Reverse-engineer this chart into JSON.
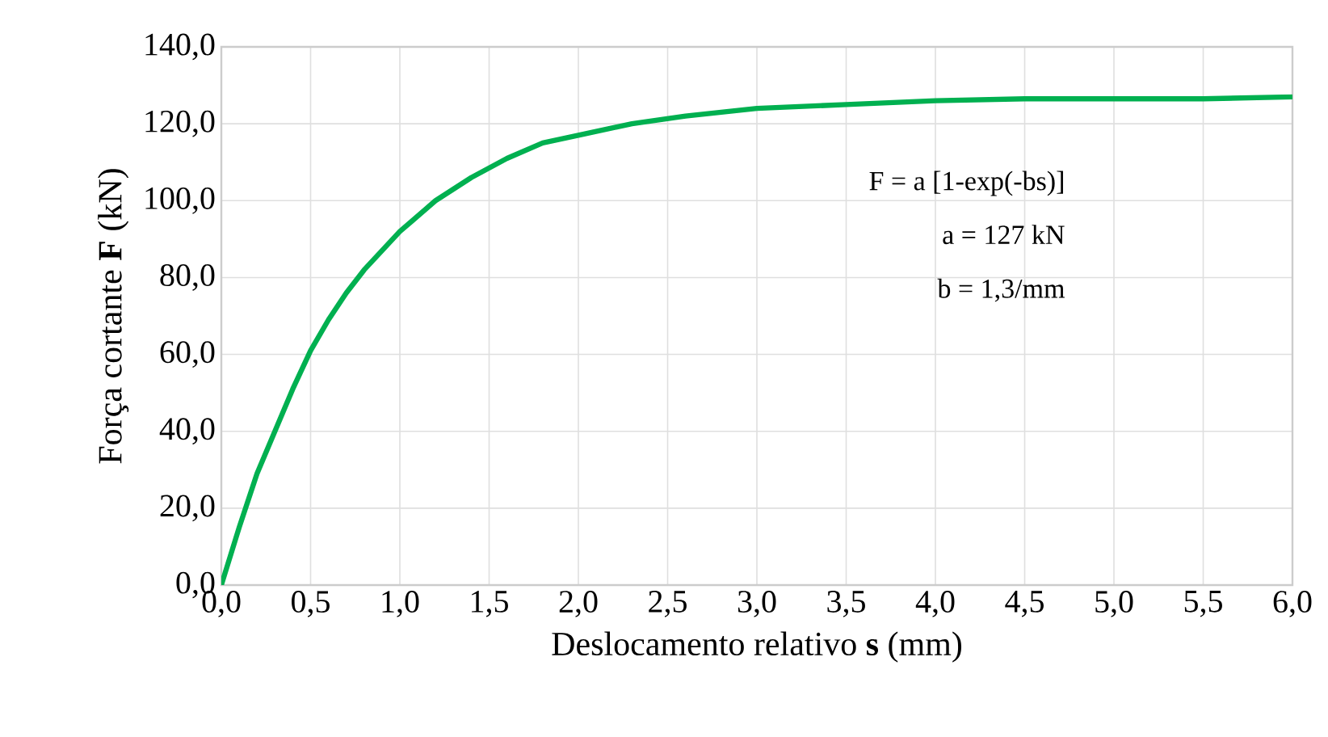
{
  "chart_data": {
    "type": "line",
    "xlabel": "Deslocamento relativo **s** (mm)",
    "ylabel": "Força cortante **F** (kN)",
    "x": [
      0,
      0.1,
      0.2,
      0.3,
      0.4,
      0.5,
      0.6,
      0.7,
      0.8,
      0.9,
      1.0,
      1.2,
      1.4,
      1.6,
      1.8,
      2.0,
      2.3,
      2.6,
      3.0,
      3.5,
      4.0,
      4.5,
      5.0,
      5.5,
      6.0
    ],
    "series": [
      {
        "color": "#00b050",
        "values": [
          0,
          15,
          29,
          40,
          51,
          61,
          69,
          76,
          82,
          87,
          92,
          100,
          106,
          111,
          115,
          117,
          120,
          122,
          124,
          125,
          126,
          126.5,
          126.5,
          126.5,
          127
        ]
      }
    ],
    "xlim": [
      0,
      6
    ],
    "ylim": [
      0,
      140
    ],
    "xticks": [
      {
        "value": 0,
        "label": "0,0"
      },
      {
        "value": 0.5,
        "label": "0,5"
      },
      {
        "value": 1,
        "label": "1,0"
      },
      {
        "value": 1.5,
        "label": "1,5"
      },
      {
        "value": 2,
        "label": "2,0"
      },
      {
        "value": 2.5,
        "label": "2,5"
      },
      {
        "value": 3,
        "label": "3,0"
      },
      {
        "value": 3.5,
        "label": "3,5"
      },
      {
        "value": 4,
        "label": "4,0"
      },
      {
        "value": 4.5,
        "label": "4,5"
      },
      {
        "value": 5,
        "label": "5,0"
      },
      {
        "value": 5.5,
        "label": "5,5"
      },
      {
        "value": 6,
        "label": "6,0"
      }
    ],
    "yticks": [
      {
        "value": 0,
        "label": "0,0"
      },
      {
        "value": 20,
        "label": "20,0"
      },
      {
        "value": 40,
        "label": "40,0"
      },
      {
        "value": 60,
        "label": "60,0"
      },
      {
        "value": 80,
        "label": "80,0"
      },
      {
        "value": 100,
        "label": "100,0"
      },
      {
        "value": 120,
        "label": "120,0"
      },
      {
        "value": 140,
        "label": "140,0"
      }
    ],
    "grid": true,
    "annotations": [
      "F = a [1-exp(-bs)]",
      "a =  127 kN",
      "b =  1,3/mm"
    ]
  }
}
